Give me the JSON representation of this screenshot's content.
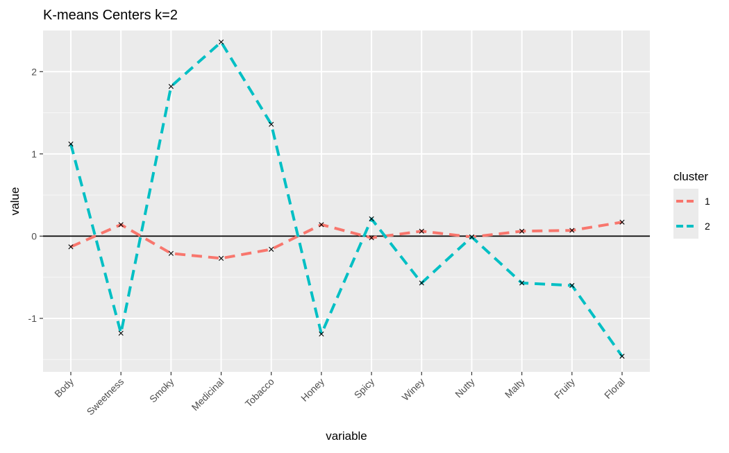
{
  "chart_data": {
    "type": "line",
    "title": "K-means Centers k=2",
    "xlabel": "variable",
    "ylabel": "value",
    "categories": [
      "Body",
      "Sweetness",
      "Smoky",
      "Medicinal",
      "Tobacco",
      "Honey",
      "Spicy",
      "Winey",
      "Nutty",
      "Malty",
      "Fruity",
      "Floral"
    ],
    "ylim": [
      -1.65,
      2.5
    ],
    "yticks": [
      2,
      1,
      0,
      -1
    ],
    "ytick_labels": [
      "2",
      "1",
      "0",
      "-1"
    ],
    "hline": 0,
    "grid": true,
    "legend": {
      "title": "cluster",
      "position": "right"
    },
    "series": [
      {
        "name": "1",
        "color": "#F8766D",
        "values": [
          -0.13,
          0.14,
          -0.21,
          -0.27,
          -0.16,
          0.14,
          -0.02,
          0.06,
          -0.01,
          0.06,
          0.07,
          0.17
        ]
      },
      {
        "name": "2",
        "color": "#00BFC4",
        "values": [
          1.12,
          -1.18,
          1.82,
          2.36,
          1.36,
          -1.19,
          0.21,
          -0.57,
          -0.01,
          -0.57,
          -0.6,
          -1.46
        ]
      }
    ]
  }
}
